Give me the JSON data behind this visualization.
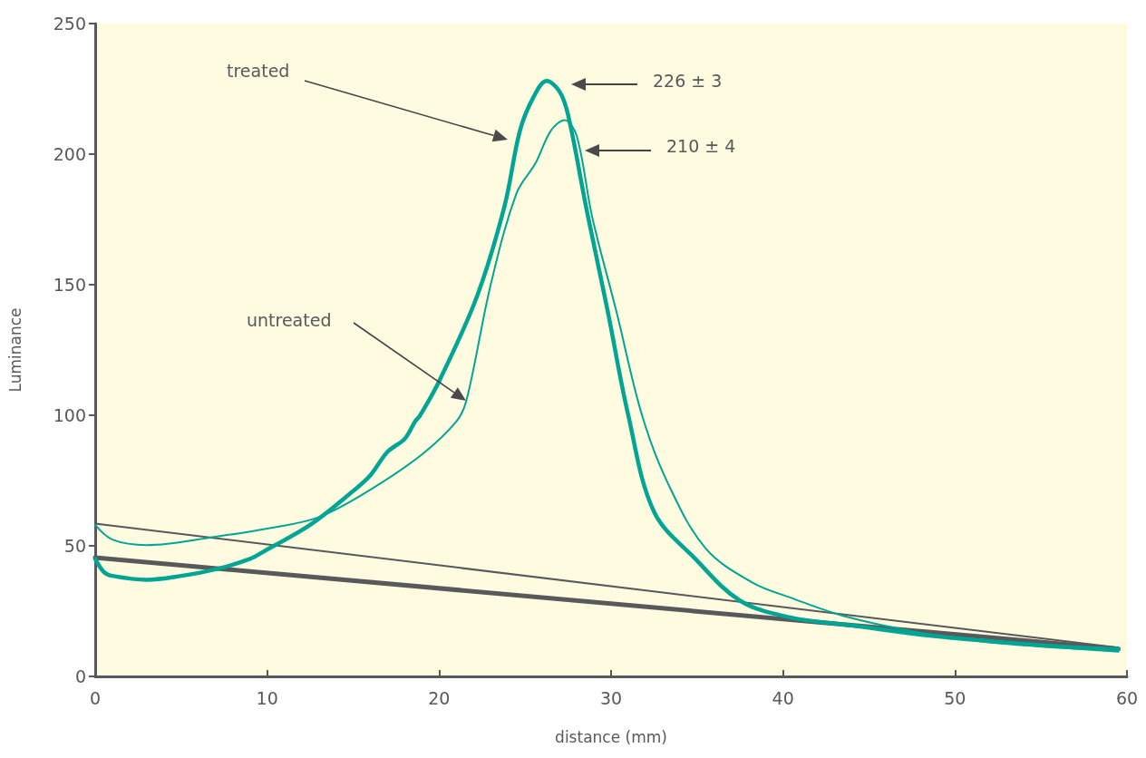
{
  "chart_data": {
    "type": "line",
    "xlabel": "distance (mm)",
    "ylabel": "Luminance",
    "xlim": [
      0,
      60
    ],
    "xticks": [
      0,
      10,
      20,
      30,
      40,
      50,
      60
    ],
    "ylim": [
      0,
      250
    ],
    "yticks": [
      0,
      50,
      100,
      150,
      200,
      250
    ],
    "grid": false,
    "marker": "none",
    "line_style": "solid",
    "series": [
      {
        "color": "#00a693",
        "x": [
          0,
          0.5,
          1,
          3,
          5,
          7,
          9,
          10,
          12.5,
          15,
          16,
          17,
          18,
          18.6,
          18.9,
          20,
          22.2,
          23.8,
          24.7,
          25.5,
          26.25,
          27,
          27.5,
          28.6,
          29.8,
          31,
          32.5,
          34.9,
          37.5,
          40.4,
          44,
          48,
          52,
          56,
          59.5
        ],
        "values": [
          45,
          40,
          38.5,
          37,
          38.5,
          41,
          45,
          48.6,
          58,
          71,
          77,
          86,
          91,
          97.6,
          100,
          113,
          145.5,
          180,
          209,
          222,
          228,
          224,
          215,
          178,
          140,
          100,
          63,
          45,
          29,
          22.6,
          19.5,
          16,
          13.5,
          11.5,
          10.4
        ]
      },
      {
        "color": "#00a693",
        "x": [
          0,
          1,
          3,
          7,
          10,
          13,
          16,
          19,
          21,
          21.6,
          23,
          24.5,
          25.6,
          26.5,
          27.3,
          28,
          28.9,
          30.3,
          31.8,
          33.3,
          35.5,
          38.2,
          40.5,
          43.6,
          48,
          52,
          56,
          59.5
        ],
        "values": [
          58,
          52.4,
          50.3,
          53.5,
          56.6,
          61,
          71.5,
          85,
          97.6,
          106,
          150,
          185,
          196.5,
          209,
          213,
          207,
          176,
          140,
          100,
          74,
          49,
          36,
          30,
          23,
          16.7,
          13,
          11,
          9.5
        ]
      },
      {
        "color": "#58595b",
        "x": [
          0,
          59.5
        ],
        "values": [
          45.5,
          10.5
        ]
      },
      {
        "color": "#58595b",
        "x": [
          0,
          59.5
        ],
        "values": [
          58.5,
          11
        ]
      }
    ],
    "annotations": [
      "treated",
      "untreated",
      "226 ± 3",
      "210 ± 4"
    ]
  }
}
